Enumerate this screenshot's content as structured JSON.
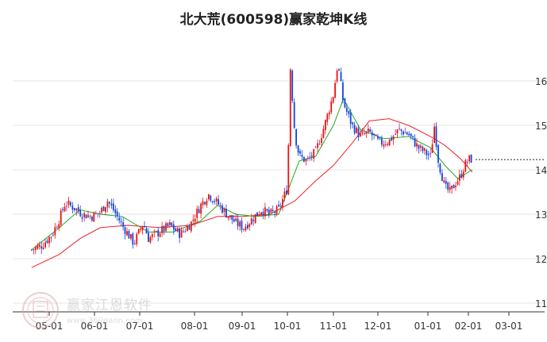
{
  "chart_data": {
    "type": "candlestick",
    "title": "北大荒(600598)赢家乾坤K线",
    "xlabel": "",
    "ylabel": "",
    "x_ticks": [
      "05-01",
      "06-01",
      "07-01",
      "08-01",
      "09-01",
      "10-01",
      "11-01",
      "12-01",
      "01-01",
      "02-01",
      "03-01"
    ],
    "y_ticks": [
      11,
      12,
      13,
      14,
      15,
      16
    ],
    "ylim": [
      11,
      16.5
    ],
    "grid": true,
    "last_price": 14.23,
    "close_series": [
      {
        "date": "04-20",
        "close": 12.2
      },
      {
        "date": "04-27",
        "close": 12.3
      },
      {
        "date": "05-03",
        "close": 12.55
      },
      {
        "date": "05-08",
        "close": 12.9
      },
      {
        "date": "05-12",
        "close": 13.25
      },
      {
        "date": "05-18",
        "close": 13.15
      },
      {
        "date": "05-24",
        "close": 13.0
      },
      {
        "date": "05-30",
        "close": 12.95
      },
      {
        "date": "06-05",
        "close": 13.05
      },
      {
        "date": "06-10",
        "close": 13.3
      },
      {
        "date": "06-14",
        "close": 13.1
      },
      {
        "date": "06-20",
        "close": 12.75
      },
      {
        "date": "06-24",
        "close": 12.55
      },
      {
        "date": "06-28",
        "close": 12.35
      },
      {
        "date": "07-03",
        "close": 12.8
      },
      {
        "date": "07-06",
        "close": 12.45
      },
      {
        "date": "07-12",
        "close": 12.6
      },
      {
        "date": "07-18",
        "close": 12.75
      },
      {
        "date": "07-24",
        "close": 12.55
      },
      {
        "date": "07-30",
        "close": 12.8
      },
      {
        "date": "08-05",
        "close": 13.2
      },
      {
        "date": "08-10",
        "close": 13.45
      },
      {
        "date": "08-16",
        "close": 13.25
      },
      {
        "date": "08-22",
        "close": 13.0
      },
      {
        "date": "08-28",
        "close": 12.8
      },
      {
        "date": "09-02",
        "close": 12.7
      },
      {
        "date": "09-08",
        "close": 12.9
      },
      {
        "date": "09-14",
        "close": 13.1
      },
      {
        "date": "09-20",
        "close": 13.0
      },
      {
        "date": "09-26",
        "close": 13.1
      },
      {
        "date": "10-01",
        "close": 13.6
      },
      {
        "date": "10-03",
        "close": 16.3
      },
      {
        "date": "10-06",
        "close": 14.8
      },
      {
        "date": "10-09",
        "close": 14.3
      },
      {
        "date": "10-14",
        "close": 14.2
      },
      {
        "date": "10-20",
        "close": 14.4
      },
      {
        "date": "10-26",
        "close": 15.0
      },
      {
        "date": "11-01",
        "close": 15.7
      },
      {
        "date": "11-04",
        "close": 16.4
      },
      {
        "date": "11-08",
        "close": 15.5
      },
      {
        "date": "11-14",
        "close": 15.0
      },
      {
        "date": "11-20",
        "close": 14.75
      },
      {
        "date": "11-26",
        "close": 14.85
      },
      {
        "date": "12-02",
        "close": 14.6
      },
      {
        "date": "12-08",
        "close": 14.65
      },
      {
        "date": "12-14",
        "close": 14.9
      },
      {
        "date": "12-20",
        "close": 14.8
      },
      {
        "date": "12-26",
        "close": 14.5
      },
      {
        "date": "12-30",
        "close": 14.4
      },
      {
        "date": "01-03",
        "close": 14.3
      },
      {
        "date": "01-06",
        "close": 15.0
      },
      {
        "date": "01-09",
        "close": 14.2
      },
      {
        "date": "01-14",
        "close": 13.6
      },
      {
        "date": "01-18",
        "close": 13.5
      },
      {
        "date": "01-22",
        "close": 13.7
      },
      {
        "date": "01-26",
        "close": 13.85
      },
      {
        "date": "01-29",
        "close": 14.1
      },
      {
        "date": "02-02",
        "close": 14.25
      },
      {
        "date": "02-04",
        "close": 14.23
      }
    ],
    "ma_short": [
      {
        "date": "04-20",
        "value": 12.2
      },
      {
        "date": "05-08",
        "value": 12.7
      },
      {
        "date": "05-22",
        "value": 13.1
      },
      {
        "date": "06-05",
        "value": 13.0
      },
      {
        "date": "06-20",
        "value": 12.95
      },
      {
        "date": "07-06",
        "value": 12.6
      },
      {
        "date": "07-20",
        "value": 12.6
      },
      {
        "date": "08-05",
        "value": 12.85
      },
      {
        "date": "08-16",
        "value": 13.2
      },
      {
        "date": "08-28",
        "value": 13.0
      },
      {
        "date": "09-10",
        "value": 12.95
      },
      {
        "date": "09-26",
        "value": 13.0
      },
      {
        "date": "10-09",
        "value": 14.2
      },
      {
        "date": "10-20",
        "value": 14.3
      },
      {
        "date": "11-01",
        "value": 15.0
      },
      {
        "date": "11-08",
        "value": 15.6
      },
      {
        "date": "11-20",
        "value": 14.9
      },
      {
        "date": "12-05",
        "value": 14.7
      },
      {
        "date": "12-20",
        "value": 14.75
      },
      {
        "date": "01-03",
        "value": 14.5
      },
      {
        "date": "01-14",
        "value": 14.1
      },
      {
        "date": "01-24",
        "value": 13.8
      },
      {
        "date": "02-01",
        "value": 13.95
      },
      {
        "date": "02-04",
        "value": 14.0
      }
    ],
    "ma_long": [
      {
        "date": "04-20",
        "value": 11.8
      },
      {
        "date": "05-08",
        "value": 12.1
      },
      {
        "date": "05-22",
        "value": 12.45
      },
      {
        "date": "06-05",
        "value": 12.7
      },
      {
        "date": "06-24",
        "value": 12.75
      },
      {
        "date": "07-12",
        "value": 12.7
      },
      {
        "date": "07-30",
        "value": 12.75
      },
      {
        "date": "08-16",
        "value": 12.95
      },
      {
        "date": "09-02",
        "value": 12.95
      },
      {
        "date": "09-20",
        "value": 13.0
      },
      {
        "date": "10-06",
        "value": 13.3
      },
      {
        "date": "10-20",
        "value": 13.75
      },
      {
        "date": "11-01",
        "value": 14.1
      },
      {
        "date": "11-14",
        "value": 14.6
      },
      {
        "date": "11-26",
        "value": 15.1
      },
      {
        "date": "12-08",
        "value": 15.15
      },
      {
        "date": "12-20",
        "value": 15.0
      },
      {
        "date": "01-03",
        "value": 14.75
      },
      {
        "date": "01-14",
        "value": 14.55
      },
      {
        "date": "01-26",
        "value": 14.25
      },
      {
        "date": "02-04",
        "value": 13.95
      }
    ],
    "colors": {
      "up": "#ee1111",
      "down": "#1144dd",
      "transition": "#8833aa",
      "ma_short": "#22aa22",
      "ma_long": "#ee2222",
      "grid": "#e4e4e4",
      "axis": "#333333",
      "last_price_line": "#222222"
    }
  },
  "watermark": {
    "text": "赢家江恩软件",
    "url": "www.360gann.com"
  }
}
